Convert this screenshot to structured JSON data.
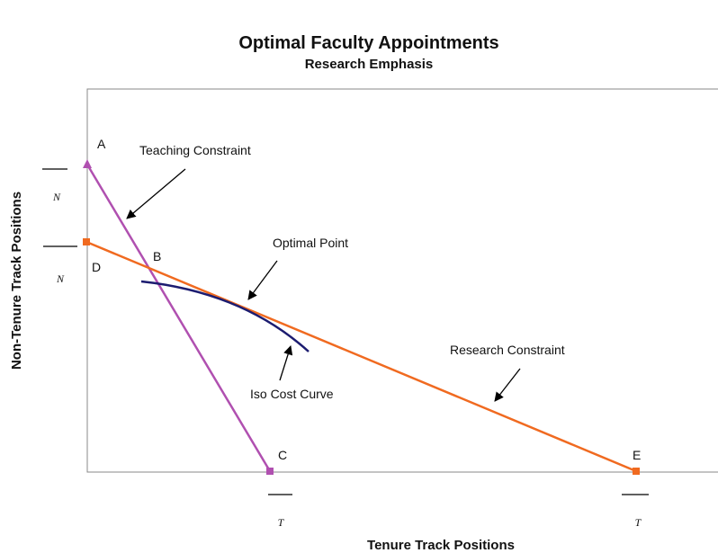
{
  "title": "Optimal Faculty Appointments",
  "subtitle": "Research Emphasis",
  "x_axis_label": "Tenure Track Positions",
  "y_axis_label": "Non-Tenure Track Positions",
  "points": {
    "A": "A",
    "B": "B",
    "C": "C",
    "D": "D",
    "E": "E"
  },
  "annotations": {
    "teaching": "Teaching Constraint",
    "optimal": "Optimal Point",
    "iso": "Iso Cost Curve",
    "research": "Research Constraint"
  },
  "y_ticks": [
    "N",
    "N"
  ],
  "x_ticks": [
    "T",
    "T"
  ]
}
